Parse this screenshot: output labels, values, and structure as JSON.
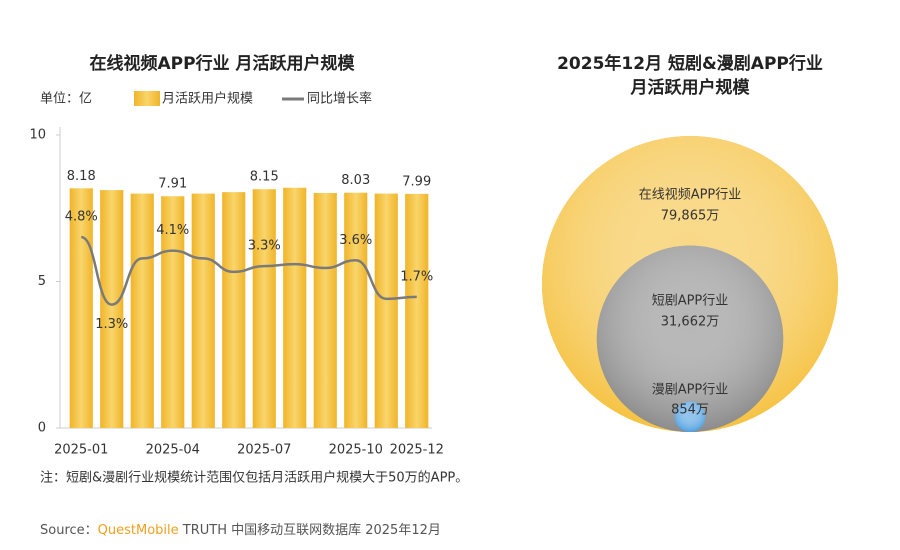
{
  "chart_data": [
    {
      "type": "bar",
      "title": "在线视频APP行业 月活跃用户规模",
      "unit_label": "单位：亿",
      "categories": [
        "2025-01",
        null,
        null,
        "2025-04",
        null,
        null,
        "2025-07",
        null,
        null,
        "2025-10",
        null,
        "2025-12"
      ],
      "series": [
        {
          "name": "月活跃用户规模",
          "type": "bar",
          "color": "#f5c242",
          "values": [
            8.18,
            8.12,
            8.0,
            7.91,
            8.0,
            8.05,
            8.15,
            8.2,
            8.02,
            8.03,
            8.0,
            7.99
          ],
          "value_labels": [
            "8.18",
            null,
            null,
            "7.91",
            null,
            null,
            "8.15",
            null,
            null,
            "8.03",
            null,
            "7.99"
          ]
        },
        {
          "name": "同比增长率",
          "type": "line",
          "axis": "y2",
          "color": "#7a7a7a",
          "values": [
            4.8,
            1.3,
            3.7,
            4.1,
            3.7,
            3.0,
            3.3,
            3.4,
            3.2,
            3.6,
            1.6,
            1.7
          ],
          "value_labels": [
            "4.8%",
            "1.3%",
            null,
            "4.1%",
            null,
            null,
            "3.3%",
            null,
            null,
            "3.6%",
            null,
            "1.7%"
          ]
        }
      ],
      "ylim": [
        0,
        10
      ],
      "yticks": [
        0,
        5,
        10
      ],
      "y2lim": [
        -5.1,
        10.1
      ]
    },
    {
      "type": "nested-circles",
      "title": [
        "2025年12月  短剧&漫剧APP行业",
        "月活跃用户规模"
      ],
      "items": [
        {
          "name": "在线视频APP行业",
          "value": 79865,
          "value_label": "79,865万",
          "color": "#f5c242"
        },
        {
          "name": "短剧APP行业",
          "value": 31662,
          "value_label": "31,662万",
          "color": "#8c8c8c"
        },
        {
          "name": "漫剧APP行业",
          "value": 854,
          "value_label": "854万",
          "color": "#4f9fe0"
        }
      ]
    }
  ],
  "note": "注：短剧&漫剧行业规模统计范围仅包括月活跃用户规模大于50万的APP。",
  "source": {
    "prefix": "Source：",
    "brand": "QuestMobile",
    "rest": " TRUTH 中国移动互联网数据库 2025年12月"
  }
}
